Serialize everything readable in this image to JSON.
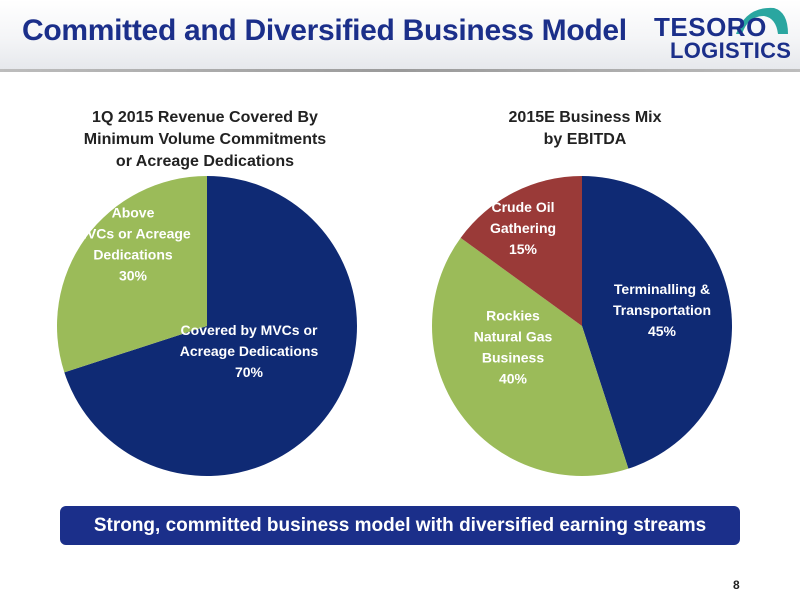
{
  "slide": {
    "title": "Committed and Diversified Business Model",
    "banner": "Strong, committed business model with diversified earning streams",
    "page_number": "8"
  },
  "logo": {
    "line1": "TESORO",
    "line2": "LOGISTICS"
  },
  "colors": {
    "navy": "#0f2a74",
    "green": "#9bbb59",
    "red": "#9a3a38",
    "title_blue": "#1b2f8a",
    "logo_teal": "#2aa6a0"
  },
  "chart_data": [
    {
      "type": "pie",
      "title": "1Q 2015 Revenue Covered By\nMinimum Volume Commitments\nor Acreage Dedications",
      "slices": [
        {
          "label": "Covered by MVCs or\nAcreage Dedications",
          "value": 70,
          "value_label": "70%",
          "color": "#0f2a74"
        },
        {
          "label": "Above\nMVCs or Acreage\nDedications",
          "value": 30,
          "value_label": "30%",
          "color": "#9bbb59"
        }
      ]
    },
    {
      "type": "pie",
      "title": "2015E Business Mix\nby EBITDA",
      "slices": [
        {
          "label": "Terminalling &\nTransportation",
          "value": 45,
          "value_label": "45%",
          "color": "#0f2a74"
        },
        {
          "label": "Rockies\nNatural Gas\nBusiness",
          "value": 40,
          "value_label": "40%",
          "color": "#9bbb59"
        },
        {
          "label": "Crude Oil\nGathering",
          "value": 15,
          "value_label": "15%",
          "color": "#9a3a38"
        }
      ]
    }
  ]
}
